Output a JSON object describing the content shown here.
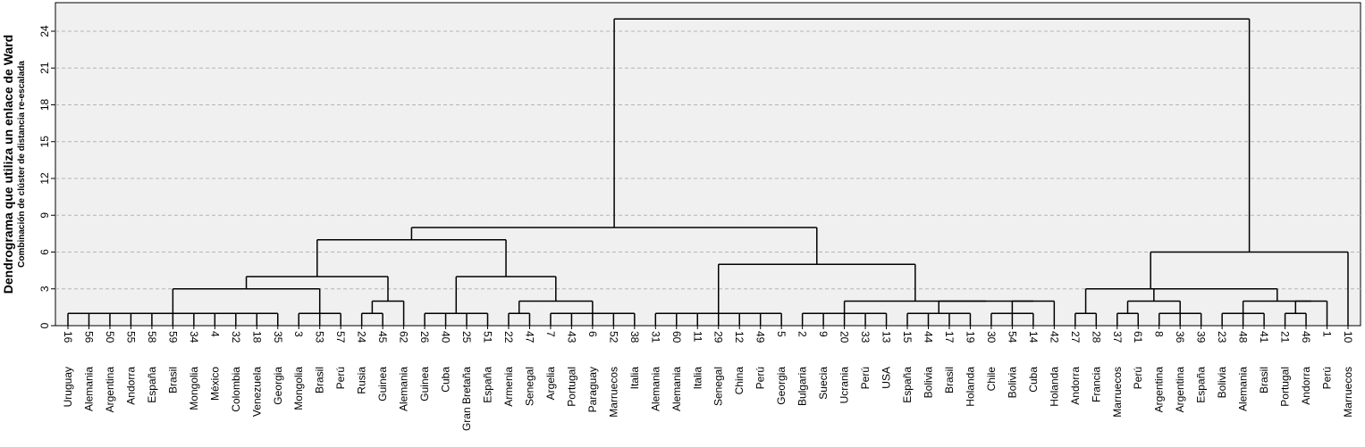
{
  "chart_data": {
    "type": "dendrogram",
    "title": "",
    "ylabel": "Dendrograma que utiliza un enlace de Ward",
    "ylabel_sub": "Combinación de clúster de distancia re-escalada",
    "ylim": [
      0,
      26
    ],
    "yticks": [
      0,
      3,
      6,
      9,
      12,
      15,
      18,
      21,
      24
    ],
    "grid": true,
    "leaves": [
      {
        "id": "16",
        "name": "Uruguay"
      },
      {
        "id": "56",
        "name": "Alemania"
      },
      {
        "id": "50",
        "name": "Argentina"
      },
      {
        "id": "55",
        "name": "Andorra"
      },
      {
        "id": "58",
        "name": "España"
      },
      {
        "id": "59",
        "name": "Brasil"
      },
      {
        "id": "34",
        "name": "Mongolia"
      },
      {
        "id": "4",
        "name": "México"
      },
      {
        "id": "32",
        "name": "Colombia"
      },
      {
        "id": "18",
        "name": "Venezuela"
      },
      {
        "id": "35",
        "name": "Georgia"
      },
      {
        "id": "3",
        "name": "Mongolia"
      },
      {
        "id": "53",
        "name": "Brasil"
      },
      {
        "id": "57",
        "name": "Perú"
      },
      {
        "id": "24",
        "name": "Rusia"
      },
      {
        "id": "45",
        "name": "Guinea"
      },
      {
        "id": "62",
        "name": "Alemania"
      },
      {
        "id": "26",
        "name": "Guinea"
      },
      {
        "id": "40",
        "name": "Cuba"
      },
      {
        "id": "25",
        "name": "Gran Bretaña"
      },
      {
        "id": "51",
        "name": "España"
      },
      {
        "id": "22",
        "name": "Armenia"
      },
      {
        "id": "47",
        "name": "Senegal"
      },
      {
        "id": "7",
        "name": "Argelia"
      },
      {
        "id": "43",
        "name": "Portugal"
      },
      {
        "id": "6",
        "name": "Paraguay"
      },
      {
        "id": "52",
        "name": "Marruecos"
      },
      {
        "id": "38",
        "name": "Italia"
      },
      {
        "id": "31",
        "name": "Alemania"
      },
      {
        "id": "60",
        "name": "Alemania"
      },
      {
        "id": "11",
        "name": "Italia"
      },
      {
        "id": "29",
        "name": "Senegal"
      },
      {
        "id": "12",
        "name": "China"
      },
      {
        "id": "49",
        "name": "Perú"
      },
      {
        "id": "5",
        "name": "Georgia"
      },
      {
        "id": "2",
        "name": "Bulgaria"
      },
      {
        "id": "9",
        "name": "Suecia"
      },
      {
        "id": "20",
        "name": "Ucrania"
      },
      {
        "id": "33",
        "name": "Perú"
      },
      {
        "id": "13",
        "name": "USA"
      },
      {
        "id": "15",
        "name": "España"
      },
      {
        "id": "44",
        "name": "Bolivia"
      },
      {
        "id": "17",
        "name": "Brasil"
      },
      {
        "id": "19",
        "name": "Holanda"
      },
      {
        "id": "30",
        "name": "Chile"
      },
      {
        "id": "54",
        "name": "Bolivia"
      },
      {
        "id": "14",
        "name": "Cuba"
      },
      {
        "id": "42",
        "name": "Holanda"
      },
      {
        "id": "27",
        "name": "Andorra"
      },
      {
        "id": "28",
        "name": "Francia"
      },
      {
        "id": "37",
        "name": "Marruecos"
      },
      {
        "id": "61",
        "name": "Perú"
      },
      {
        "id": "8",
        "name": "Argentina"
      },
      {
        "id": "36",
        "name": "Argentina"
      },
      {
        "id": "39",
        "name": "España"
      },
      {
        "id": "23",
        "name": "Bolivia"
      },
      {
        "id": "48",
        "name": "Alemania"
      },
      {
        "id": "41",
        "name": "Brasil"
      },
      {
        "id": "21",
        "name": "Portugal"
      },
      {
        "id": "46",
        "name": "Andorra"
      },
      {
        "id": "1",
        "name": "Perú"
      },
      {
        "id": "10",
        "name": "Marruecos"
      }
    ],
    "tree": {
      "h": 25,
      "c": [
        {
          "h": 8,
          "c": [
            {
              "h": 7,
              "c": [
                {
                  "h": 4,
                  "c": [
                    {
                      "h": 3,
                      "c": [
                        {
                          "h": 1,
                          "c": [
                            0,
                            1,
                            2,
                            3,
                            4,
                            5,
                            6,
                            7,
                            8,
                            9,
                            10
                          ]
                        },
                        {
                          "h": 1,
                          "c": [
                            11,
                            12,
                            13
                          ]
                        }
                      ]
                    },
                    {
                      "h": 2,
                      "c": [
                        {
                          "h": 1,
                          "c": [
                            14,
                            15
                          ]
                        },
                        16
                      ]
                    }
                  ]
                },
                {
                  "h": 4,
                  "c": [
                    {
                      "h": 1,
                      "c": [
                        17,
                        18,
                        19,
                        20
                      ]
                    },
                    {
                      "h": 2,
                      "c": [
                        {
                          "h": 1,
                          "c": [
                            21,
                            22
                          ]
                        },
                        {
                          "h": 1,
                          "c": [
                            23,
                            24,
                            25,
                            26,
                            27
                          ]
                        }
                      ]
                    }
                  ]
                }
              ]
            },
            {
              "h": 5,
              "c": [
                {
                  "h": 1,
                  "c": [
                    28,
                    29,
                    30,
                    31,
                    32,
                    33,
                    34
                  ]
                },
                {
                  "h": 2,
                  "c": [
                    {
                      "h": 1,
                      "c": [
                        35,
                        36,
                        37,
                        38,
                        39
                      ]
                    },
                    {
                      "h": 2,
                      "c": [
                        {
                          "h": 1,
                          "c": [
                            40,
                            41,
                            42,
                            43
                          ]
                        },
                        {
                          "h": 2,
                          "c": [
                            {
                              "h": 1,
                              "c": [
                                44,
                                45,
                                46
                              ]
                            },
                            47
                          ]
                        }
                      ]
                    }
                  ]
                }
              ]
            }
          ]
        },
        {
          "h": 6,
          "c": [
            {
              "h": 3,
              "c": [
                {
                  "h": 1,
                  "c": [
                    48,
                    49
                  ]
                },
                {
                  "h": 3,
                  "c": [
                    {
                      "h": 2,
                      "c": [
                        {
                          "h": 1,
                          "c": [
                            50,
                            51
                          ]
                        },
                        {
                          "h": 1,
                          "c": [
                            52,
                            53,
                            54
                          ]
                        }
                      ]
                    },
                    {
                      "h": 2,
                      "c": [
                        {
                          "h": 1,
                          "c": [
                            55,
                            56,
                            57
                          ]
                        },
                        {
                          "h": 2,
                          "c": [
                            {
                              "h": 1,
                              "c": [
                                58,
                                59
                              ]
                            },
                            60
                          ]
                        }
                      ]
                    }
                  ]
                }
              ]
            },
            61
          ]
        }
      ]
    }
  }
}
